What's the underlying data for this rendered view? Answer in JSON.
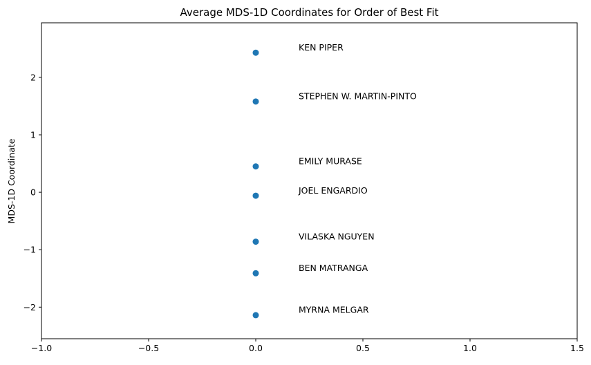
{
  "chart_data": {
    "type": "scatter",
    "title": "Average MDS-1D Coordinates for Order of Best Fit",
    "xlabel": "",
    "ylabel": "MDS-1D Coordinate",
    "xlim": [
      -1.0,
      1.5
    ],
    "ylim": [
      -2.55,
      2.95
    ],
    "xticks": [
      -1.0,
      -0.5,
      0.0,
      0.5,
      1.0,
      1.5
    ],
    "xtick_labels": [
      "−1.0",
      "−0.5",
      "0.0",
      "0.5",
      "1.0",
      "1.5"
    ],
    "yticks": [
      2,
      1,
      0,
      -1,
      -2
    ],
    "ytick_labels": [
      "2",
      "1",
      "0",
      "−1",
      "−2"
    ],
    "grid": false,
    "marker_color": "#1f77b4",
    "points": [
      {
        "label": "KEN PIPER",
        "x": 0.0,
        "y": 2.43
      },
      {
        "label": "STEPHEN W. MARTIN-PINTO",
        "x": 0.0,
        "y": 1.58
      },
      {
        "label": "EMILY MURASE",
        "x": 0.0,
        "y": 0.45
      },
      {
        "label": "JOEL ENGARDIO",
        "x": 0.0,
        "y": -0.06
      },
      {
        "label": "VILASKA NGUYEN",
        "x": 0.0,
        "y": -0.86
      },
      {
        "label": "BEN MATRANGA",
        "x": 0.0,
        "y": -1.41
      },
      {
        "label": "MYRNA MELGAR",
        "x": 0.0,
        "y": -2.14
      }
    ],
    "annotation_offset": [
      0.2,
      0.04
    ]
  }
}
